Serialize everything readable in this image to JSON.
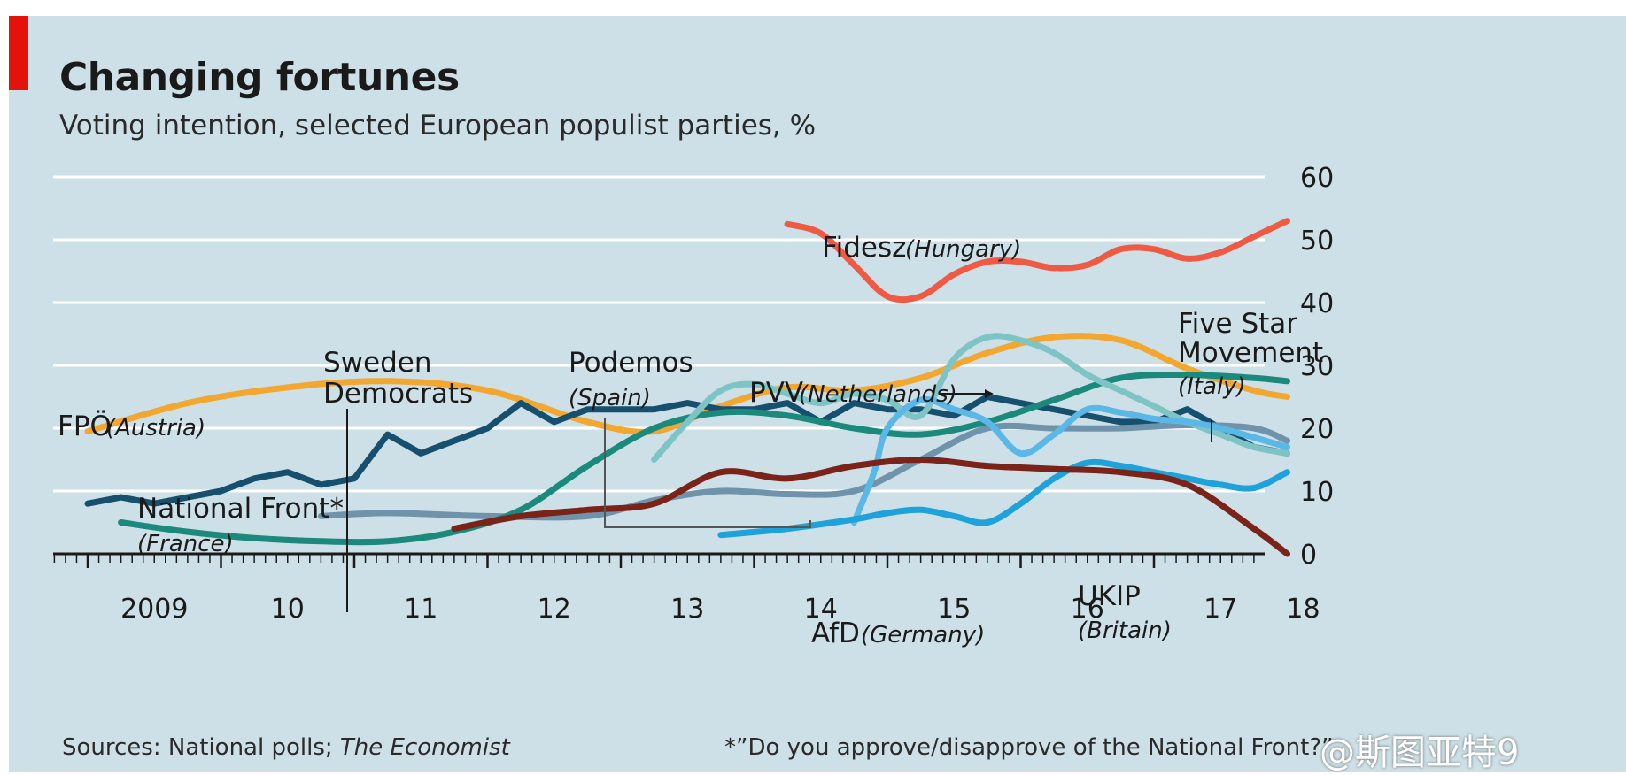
{
  "header": {
    "title": "Changing fortunes",
    "subtitle": "Voting intention, selected European populist parties, %"
  },
  "footer": {
    "sources_prefix": "Sources: National polls; ",
    "sources_pub": "The Economist",
    "footnote": "*”Do you approve/disapprove of the National Front?”",
    "watermark": "@斯图亚特9"
  },
  "colors": {
    "background": "#cde0e8",
    "accent": "#e3120b",
    "grid": "#ffffff"
  },
  "chart_data": {
    "type": "line",
    "title": "Changing fortunes",
    "subtitle": "Voting intention, selected European populist parties, %",
    "xlim": [
      2009.5,
      2018.0
    ],
    "ylim": [
      0,
      60
    ],
    "y_ticks": [
      0,
      10,
      20,
      30,
      40,
      50,
      60
    ],
    "y_axis_side": "right",
    "x_ticks": [
      {
        "value": 2009,
        "label": "2009"
      },
      {
        "value": 2010,
        "label": "10"
      },
      {
        "value": 2011,
        "label": "11"
      },
      {
        "value": 2012,
        "label": "12"
      },
      {
        "value": 2013,
        "label": "13"
      },
      {
        "value": 2014,
        "label": "14"
      },
      {
        "value": 2015,
        "label": "15"
      },
      {
        "value": 2016,
        "label": "16"
      },
      {
        "value": 2017,
        "label": "17"
      },
      {
        "value": 2018,
        "label": "18"
      }
    ],
    "grid": true,
    "series": [
      {
        "name": "Fidesz",
        "country": "(Hungary)",
        "color": "#ef5a45",
        "curve": true,
        "x": [
          2014.25,
          2014.5,
          2014.75,
          2015.0,
          2015.25,
          2015.5,
          2015.75,
          2016.0,
          2016.25,
          2016.5,
          2016.75,
          2017.0,
          2017.25,
          2017.5,
          2017.75,
          2018.0
        ],
        "y": [
          52.5,
          51,
          46,
          41,
          41,
          44.5,
          46.5,
          46.5,
          45.5,
          46,
          48.5,
          48.5,
          47,
          48,
          50.5,
          53
        ]
      },
      {
        "name": "FPÖ",
        "country": "(Austria)",
        "color": "#f2a830",
        "curve": true,
        "x": [
          2009.0,
          2009.75,
          2010.5,
          2011.25,
          2012.0,
          2012.75,
          2013.25,
          2013.75,
          2014.25,
          2014.75,
          2015.25,
          2015.75,
          2016.25,
          2016.75,
          2017.25,
          2017.75,
          2018.0
        ],
        "y": [
          19.5,
          24,
          26.5,
          27.5,
          26,
          21,
          19.5,
          23.5,
          26.5,
          26,
          28,
          32,
          34.5,
          34,
          29.5,
          26,
          25
        ]
      },
      {
        "name": "National Front*",
        "country": "(France)",
        "color": "#17506e",
        "curve": false,
        "x": [
          2009.0,
          2009.25,
          2009.5,
          2009.75,
          2010.0,
          2010.25,
          2010.5,
          2010.75,
          2011.0,
          2011.25,
          2011.5,
          2011.75,
          2012.0,
          2012.25,
          2012.5,
          2012.75,
          2013.0,
          2013.25,
          2013.5,
          2013.75,
          2014.0,
          2014.25,
          2014.5,
          2014.75,
          2015.0,
          2015.25,
          2015.5,
          2015.75,
          2016.0,
          2016.25,
          2016.5,
          2016.75,
          2017.0,
          2017.25,
          2017.5,
          2017.75,
          2018.0
        ],
        "y": [
          8,
          9,
          8,
          9,
          10,
          12,
          13,
          11,
          12,
          19,
          16,
          18,
          20,
          24,
          21,
          23,
          23,
          23,
          24,
          23,
          23,
          24,
          21,
          24,
          23,
          23,
          22,
          25,
          24,
          23,
          22,
          21,
          21,
          23,
          20,
          17,
          16
        ]
      },
      {
        "name": "Sweden Democrats",
        "color": "#6f93ab",
        "curve": true,
        "x": [
          2010.75,
          2011.25,
          2012.0,
          2012.75,
          2013.25,
          2013.75,
          2014.25,
          2014.75,
          2015.25,
          2015.75,
          2016.25,
          2016.75,
          2017.25,
          2017.75,
          2018.0
        ],
        "y": [
          6,
          6.5,
          6,
          6,
          8.5,
          10,
          9.5,
          10,
          15,
          20,
          20,
          20,
          20.5,
          20,
          18
        ]
      },
      {
        "name": "Five Star Movement",
        "country": "(Italy)",
        "color": "#1b8a7c",
        "curve": true,
        "x": [
          2009.25,
          2009.75,
          2010.25,
          2010.75,
          2011.25,
          2011.75,
          2012.25,
          2012.75,
          2013.25,
          2013.75,
          2014.25,
          2014.75,
          2015.25,
          2015.75,
          2016.25,
          2016.75,
          2017.25,
          2017.75,
          2018.0
        ],
        "y": [
          5,
          3.5,
          2.5,
          2,
          2,
          3.5,
          7,
          14,
          20,
          22.5,
          22,
          20,
          19,
          21,
          24.5,
          28,
          28.5,
          28,
          27.5
        ]
      },
      {
        "name": "Podemos",
        "country": "(Spain)",
        "color": "#7fc4c4",
        "curve": true,
        "x": [
          2013.25,
          2013.5,
          2013.75,
          2014.0,
          2014.25,
          2014.5,
          2014.75,
          2015.0,
          2015.25,
          2015.5,
          2015.75,
          2016.0,
          2016.25,
          2016.5,
          2016.75,
          2017.0,
          2017.25,
          2017.5,
          2017.75,
          2018.0
        ],
        "y": [
          15,
          21,
          26,
          27,
          25.5,
          24,
          25.5,
          24.5,
          22,
          31,
          34.5,
          34,
          32,
          28.5,
          26,
          23.5,
          21,
          19,
          17,
          16
        ]
      },
      {
        "name": "PVV",
        "country": "(Netherlands)",
        "color": "#5bb7e6",
        "curve": true,
        "x": [
          2014.75,
          2014.9,
          2015.0,
          2015.25,
          2015.5,
          2015.75,
          2016.0,
          2016.25,
          2016.5,
          2016.75,
          2017.0,
          2017.25,
          2017.5,
          2018.0
        ],
        "y": [
          5,
          13,
          20,
          24.5,
          23,
          21,
          16,
          19,
          23,
          22.5,
          21.5,
          21,
          20,
          17
        ]
      },
      {
        "name": "AfD",
        "country": "(Germany)",
        "color": "#1fa1d9",
        "curve": true,
        "x": [
          2013.75,
          2014.25,
          2014.75,
          2015.0,
          2015.25,
          2015.5,
          2015.75,
          2016.0,
          2016.25,
          2016.5,
          2016.75,
          2017.0,
          2017.25,
          2017.5,
          2017.75,
          2018.0
        ],
        "y": [
          3,
          4,
          5.5,
          6.5,
          7,
          6,
          5,
          8,
          12,
          14.5,
          14,
          13,
          12,
          11,
          10.5,
          13
        ]
      },
      {
        "name": "UKIP",
        "country": "(Britain)",
        "color": "#7a2318",
        "curve": true,
        "x": [
          2011.75,
          2012.25,
          2012.75,
          2013.25,
          2013.75,
          2014.25,
          2014.75,
          2015.25,
          2015.75,
          2016.25,
          2016.75,
          2017.25,
          2017.75,
          2018.0
        ],
        "y": [
          4,
          6,
          7,
          8,
          13,
          12,
          14,
          15,
          14,
          13.5,
          13,
          11,
          4,
          0
        ]
      }
    ]
  },
  "labels": {
    "fidesz": "Fidesz",
    "fidesz_country": "(Hungary)",
    "fpo": "FPÖ",
    "fpo_country": "(Austria)",
    "nf_1": "National Front*",
    "nf_country": "(France)",
    "sd_1": "Sweden",
    "sd_2": "Democrats",
    "podemos": "Podemos",
    "podemos_country": "(Spain)",
    "pvv": "PVV",
    "pvv_country": "(Netherlands)",
    "m5s_1": "Five Star",
    "m5s_2": "Movement",
    "m5s_country": "(Italy)",
    "afd": "AfD",
    "afd_country": "(Germany)",
    "ukip": "UKIP",
    "ukip_country": "(Britain)"
  }
}
